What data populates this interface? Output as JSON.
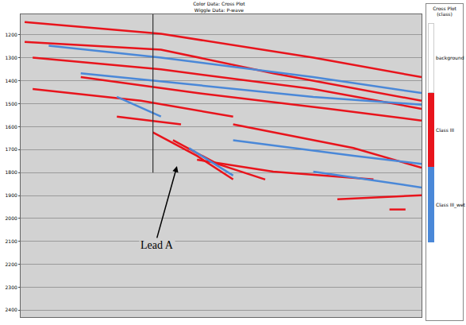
{
  "chart_data": {
    "type": "line",
    "title": "Color Data: Cross Plot",
    "subtitle": "Wiggle Data: P-wave",
    "tick_labels": "y",
    "grid": true,
    "xlim": [
      0,
      100
    ],
    "ylim": [
      2430,
      1110
    ],
    "yticks": [
      1200,
      1300,
      1400,
      1500,
      1600,
      1700,
      1800,
      1900,
      2000,
      2100,
      2200,
      2300,
      2400
    ],
    "legend_panel": {
      "title": "Cross Plot (class)",
      "entries": [
        {
          "name": "background",
          "color": "#ffffff"
        },
        {
          "name": "Class III",
          "color": "#e8141c"
        },
        {
          "name": "Class III_wet",
          "color": "#4a88d8"
        }
      ]
    },
    "well_line": {
      "x": 33,
      "y0": 1110,
      "y1": 1800
    },
    "annotation": {
      "text": "Lead A",
      "x": 39,
      "y": 1772,
      "text_x": 34,
      "text_y": 2085
    },
    "series": [
      {
        "name": "Class III",
        "color": "#e8141c",
        "x": [
          1,
          35,
          73,
          100,
          null,
          1,
          35,
          63,
          100,
          null,
          3,
          35,
          73,
          100,
          null,
          15,
          44,
          77,
          100,
          null,
          3,
          30,
          53,
          null,
          33,
          44,
          53,
          null,
          38,
          49,
          61,
          null,
          24,
          40,
          null,
          53,
          83,
          100,
          null,
          44,
          63,
          88,
          null,
          79,
          100,
          null,
          92,
          96
        ],
        "values": [
          1144,
          1195,
          1299,
          1384,
          null,
          1230,
          1264,
          1367,
          1487,
          null,
          1299,
          1350,
          1436,
          1522,
          null,
          1384,
          1453,
          1522,
          1573,
          null,
          1436,
          1487,
          1556,
          null,
          1625,
          1727,
          1830,
          null,
          1659,
          1762,
          1830,
          null,
          1556,
          1590,
          null,
          1590,
          1693,
          1779,
          null,
          1744,
          1796,
          1830,
          null,
          1916,
          1899,
          null,
          1961,
          1961
        ]
      },
      {
        "name": "Class III_wet",
        "color": "#4a88d8",
        "x": [
          7,
          35,
          73,
          100,
          null,
          15,
          44,
          73,
          100,
          null,
          24,
          35,
          null,
          42,
          53,
          null,
          53,
          83,
          100,
          null,
          73,
          100
        ],
        "values": [
          1247,
          1299,
          1384,
          1453,
          null,
          1367,
          1419,
          1470,
          1504,
          null,
          1470,
          1556,
          null,
          1693,
          1813,
          null,
          1659,
          1727,
          1762,
          null,
          1796,
          1865
        ]
      }
    ]
  }
}
